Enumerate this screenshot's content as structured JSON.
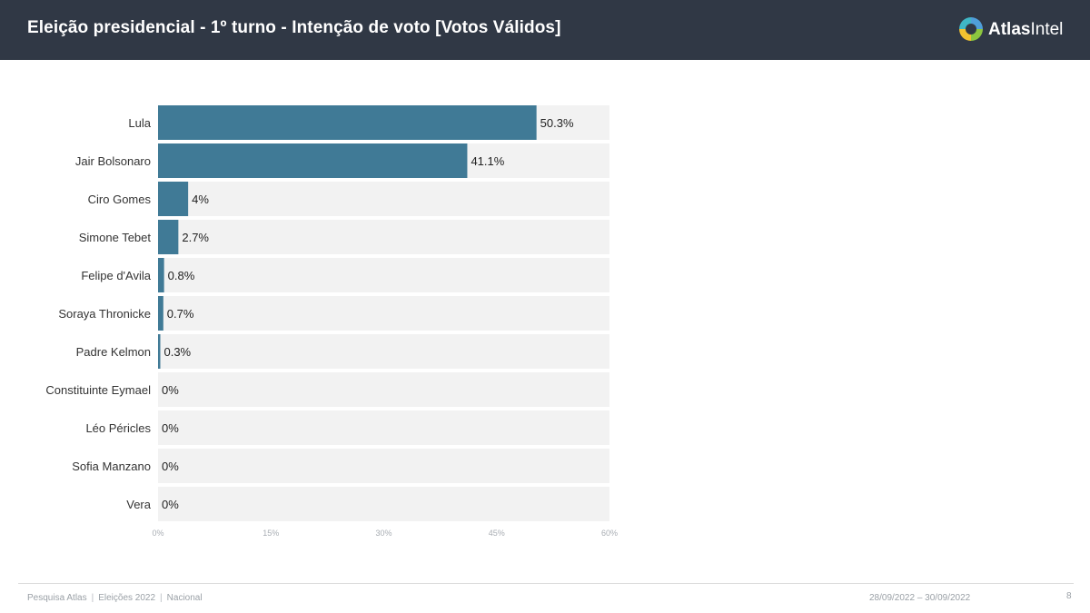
{
  "header": {
    "title": "Eleição presidencial - 1º turno - Intenção de voto [Votos Válidos]",
    "brand_bold": "Atlas",
    "brand_regular": "Intel"
  },
  "colors": {
    "header_bg": "#303845",
    "bar": "#407a96",
    "track": "#f2f2f2"
  },
  "chart_data": {
    "type": "bar",
    "orientation": "horizontal",
    "categories": [
      "Lula",
      "Jair Bolsonaro",
      "Ciro Gomes",
      "Simone Tebet",
      "Felipe d'Avila",
      "Soraya Thronicke",
      "Padre Kelmon",
      "Constituinte Eymael",
      "Léo Péricles",
      "Sofia Manzano",
      "Vera"
    ],
    "values": [
      50.3,
      41.1,
      4,
      2.7,
      0.8,
      0.7,
      0.3,
      0,
      0,
      0,
      0
    ],
    "labels": [
      "50.3%",
      "41.1%",
      "4%",
      "2.7%",
      "0.8%",
      "0.7%",
      "0.3%",
      "0%",
      "0%",
      "0%",
      "0%"
    ],
    "xlim": [
      0,
      60
    ],
    "xticks": [
      0,
      15,
      30,
      45,
      60
    ],
    "xtick_labels": [
      "0%",
      "15%",
      "30%",
      "45%",
      "60%"
    ],
    "grid": false
  },
  "footer": {
    "source": "Pesquisa Atlas",
    "topic": "Eleições 2022",
    "scope": "Nacional",
    "dates": "28/09/2022 – 30/09/2022",
    "page": "8"
  }
}
